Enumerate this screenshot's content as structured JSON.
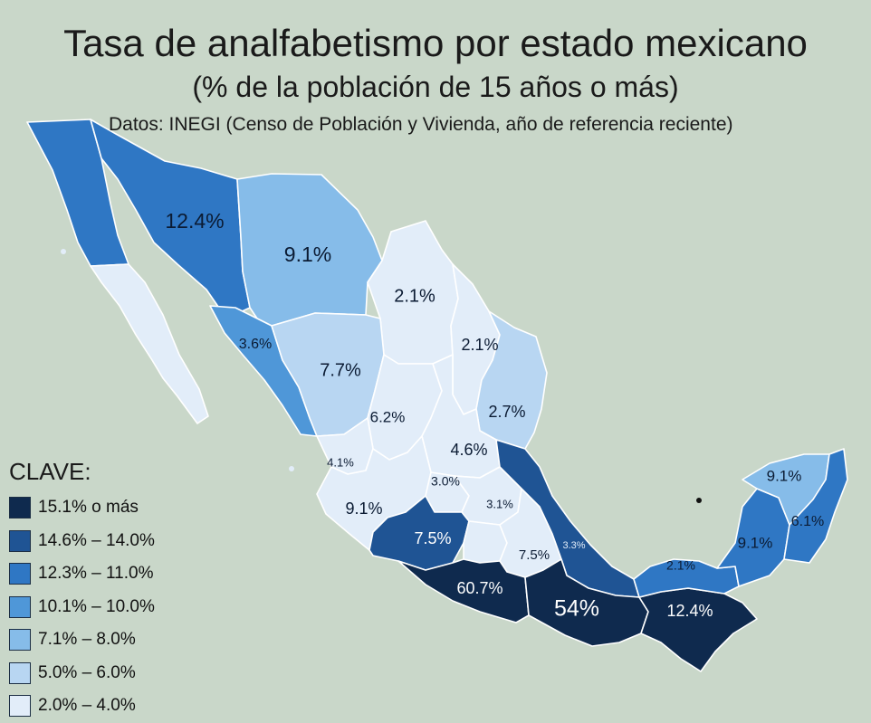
{
  "title": "Tasa de analfabetismo por estado mexicano",
  "subtitle": "(% de la población de 15 años o más)",
  "source": "Datos: INEGI (Censo de Población y Vivienda, año de referencia reciente)",
  "legend": {
    "title": "CLAVE:",
    "items": [
      {
        "label": "15.1% o más",
        "color": "#0f2a4e"
      },
      {
        "label": "14.6% – 14.0%",
        "color": "#1f5494"
      },
      {
        "label": "12.3% – 11.0%",
        "color": "#2f77c4"
      },
      {
        "label": "10.1% – 10.0%",
        "color": "#4f97d8"
      },
      {
        "label": "7.1% – 8.0%",
        "color": "#86bce9"
      },
      {
        "label": "5.0% – 6.0%",
        "color": "#b8d6f2"
      },
      {
        "label": "2.0% – 4.0%",
        "color": "#e2edf9"
      }
    ]
  },
  "regions": [
    {
      "id": "baja-california",
      "label": ""
    },
    {
      "id": "baja-california-sur",
      "label": ""
    },
    {
      "id": "sonora",
      "label": "12.4%"
    },
    {
      "id": "chihuahua",
      "label": "9.1%"
    },
    {
      "id": "coahuila",
      "label": "2.1%"
    },
    {
      "id": "nuevo-leon",
      "label": "2.1%"
    },
    {
      "id": "tamaulipas",
      "label": "2.7%"
    },
    {
      "id": "sinaloa",
      "label": "3.6%"
    },
    {
      "id": "durango",
      "label": "7.7%"
    },
    {
      "id": "zacatecas",
      "label": "6.2%"
    },
    {
      "id": "san-luis-potosi",
      "label": "4.6%"
    },
    {
      "id": "nayarit",
      "label": "4.1%"
    },
    {
      "id": "jalisco",
      "label": "9.1%"
    },
    {
      "id": "guanajuato",
      "label": "3.0%"
    },
    {
      "id": "queretaro",
      "label": "3.1%"
    },
    {
      "id": "michoacan",
      "label": "7.5%"
    },
    {
      "id": "mexico",
      "label": ""
    },
    {
      "id": "puebla",
      "label": "7.5%"
    },
    {
      "id": "veracruz",
      "label": "3.3%"
    },
    {
      "id": "guerrero",
      "label": "60.7%"
    },
    {
      "id": "oaxaca",
      "label": "54%"
    },
    {
      "id": "chiapas",
      "label": "12.4%"
    },
    {
      "id": "tabasco",
      "label": "2.1%"
    },
    {
      "id": "campeche",
      "label": "9.1%"
    },
    {
      "id": "yucatan",
      "label": "9.1%"
    },
    {
      "id": "quintana-roo",
      "label": "6.1%"
    }
  ]
}
